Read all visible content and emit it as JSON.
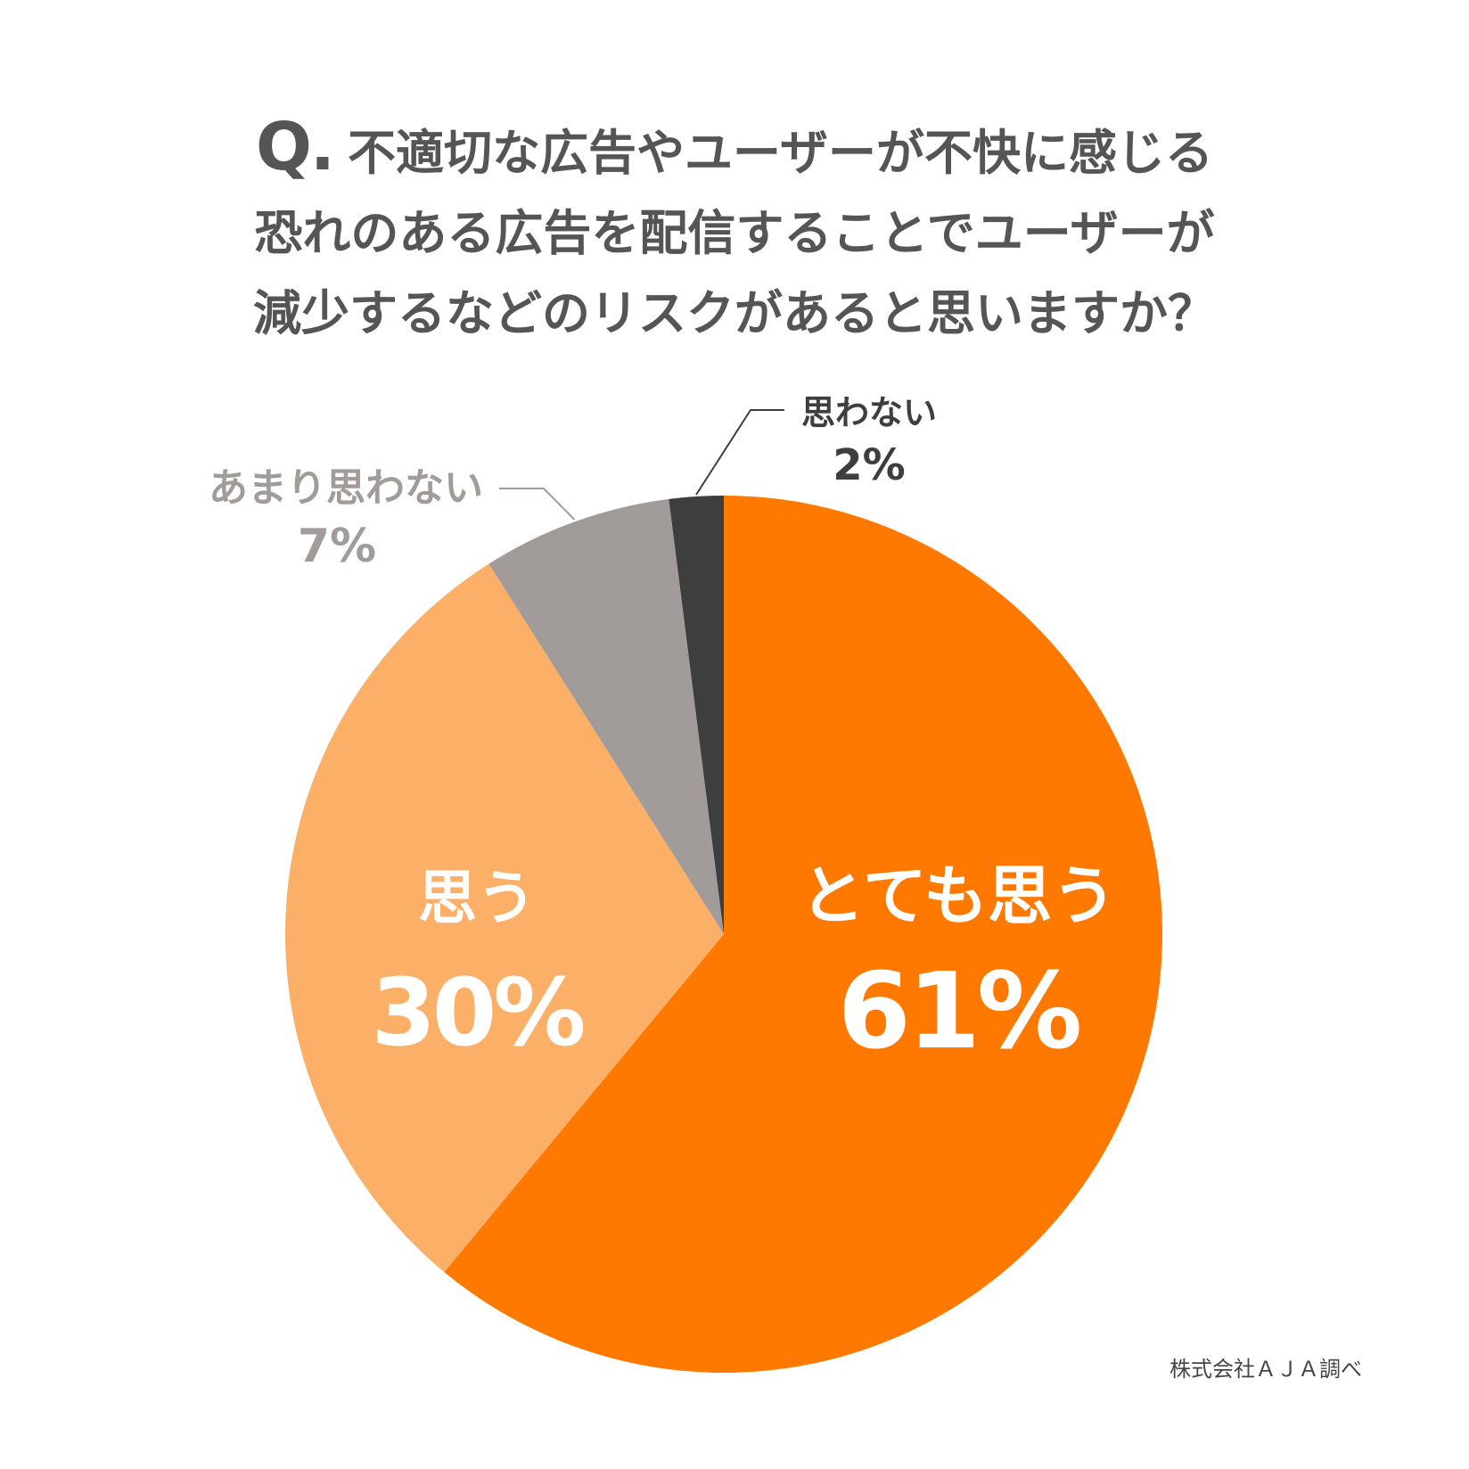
{
  "title": {
    "prefix": "Q.",
    "line1": "不適切な広告やユーザーが不快に感じる",
    "line2": "恐れのある広告を配信することでユーザーが",
    "line3": "減少するなどのリスクがあると思いますか？"
  },
  "source": "株式会社ＡＪＡ調べ",
  "colors": {
    "very": "#FF7800",
    "somewhat": "#FBAF67",
    "not_really": "#A19C99",
    "not": "#3E3E3E",
    "inner_label": "#FFFFFF"
  },
  "chart_data": {
    "type": "pie",
    "title": "不適切な広告やユーザーが不快に感じる恐れのある広告を配信することでユーザーが減少するなどのリスクがあると思いますか？",
    "start": "12 o'clock",
    "direction": "clockwise",
    "slices": [
      {
        "label": "とても思う",
        "value": 61,
        "value_label": "61%",
        "color": "#FF7800",
        "label_placement": "inside"
      },
      {
        "label": "思う",
        "value": 30,
        "value_label": "30%",
        "color": "#FBAF67",
        "label_placement": "inside"
      },
      {
        "label": "あまり思わない",
        "value": 7,
        "value_label": "7%",
        "color": "#A19C99",
        "label_placement": "outside-left"
      },
      {
        "label": "思わない",
        "value": 2,
        "value_label": "2%",
        "color": "#3E3E3E",
        "label_placement": "outside-top"
      }
    ]
  }
}
